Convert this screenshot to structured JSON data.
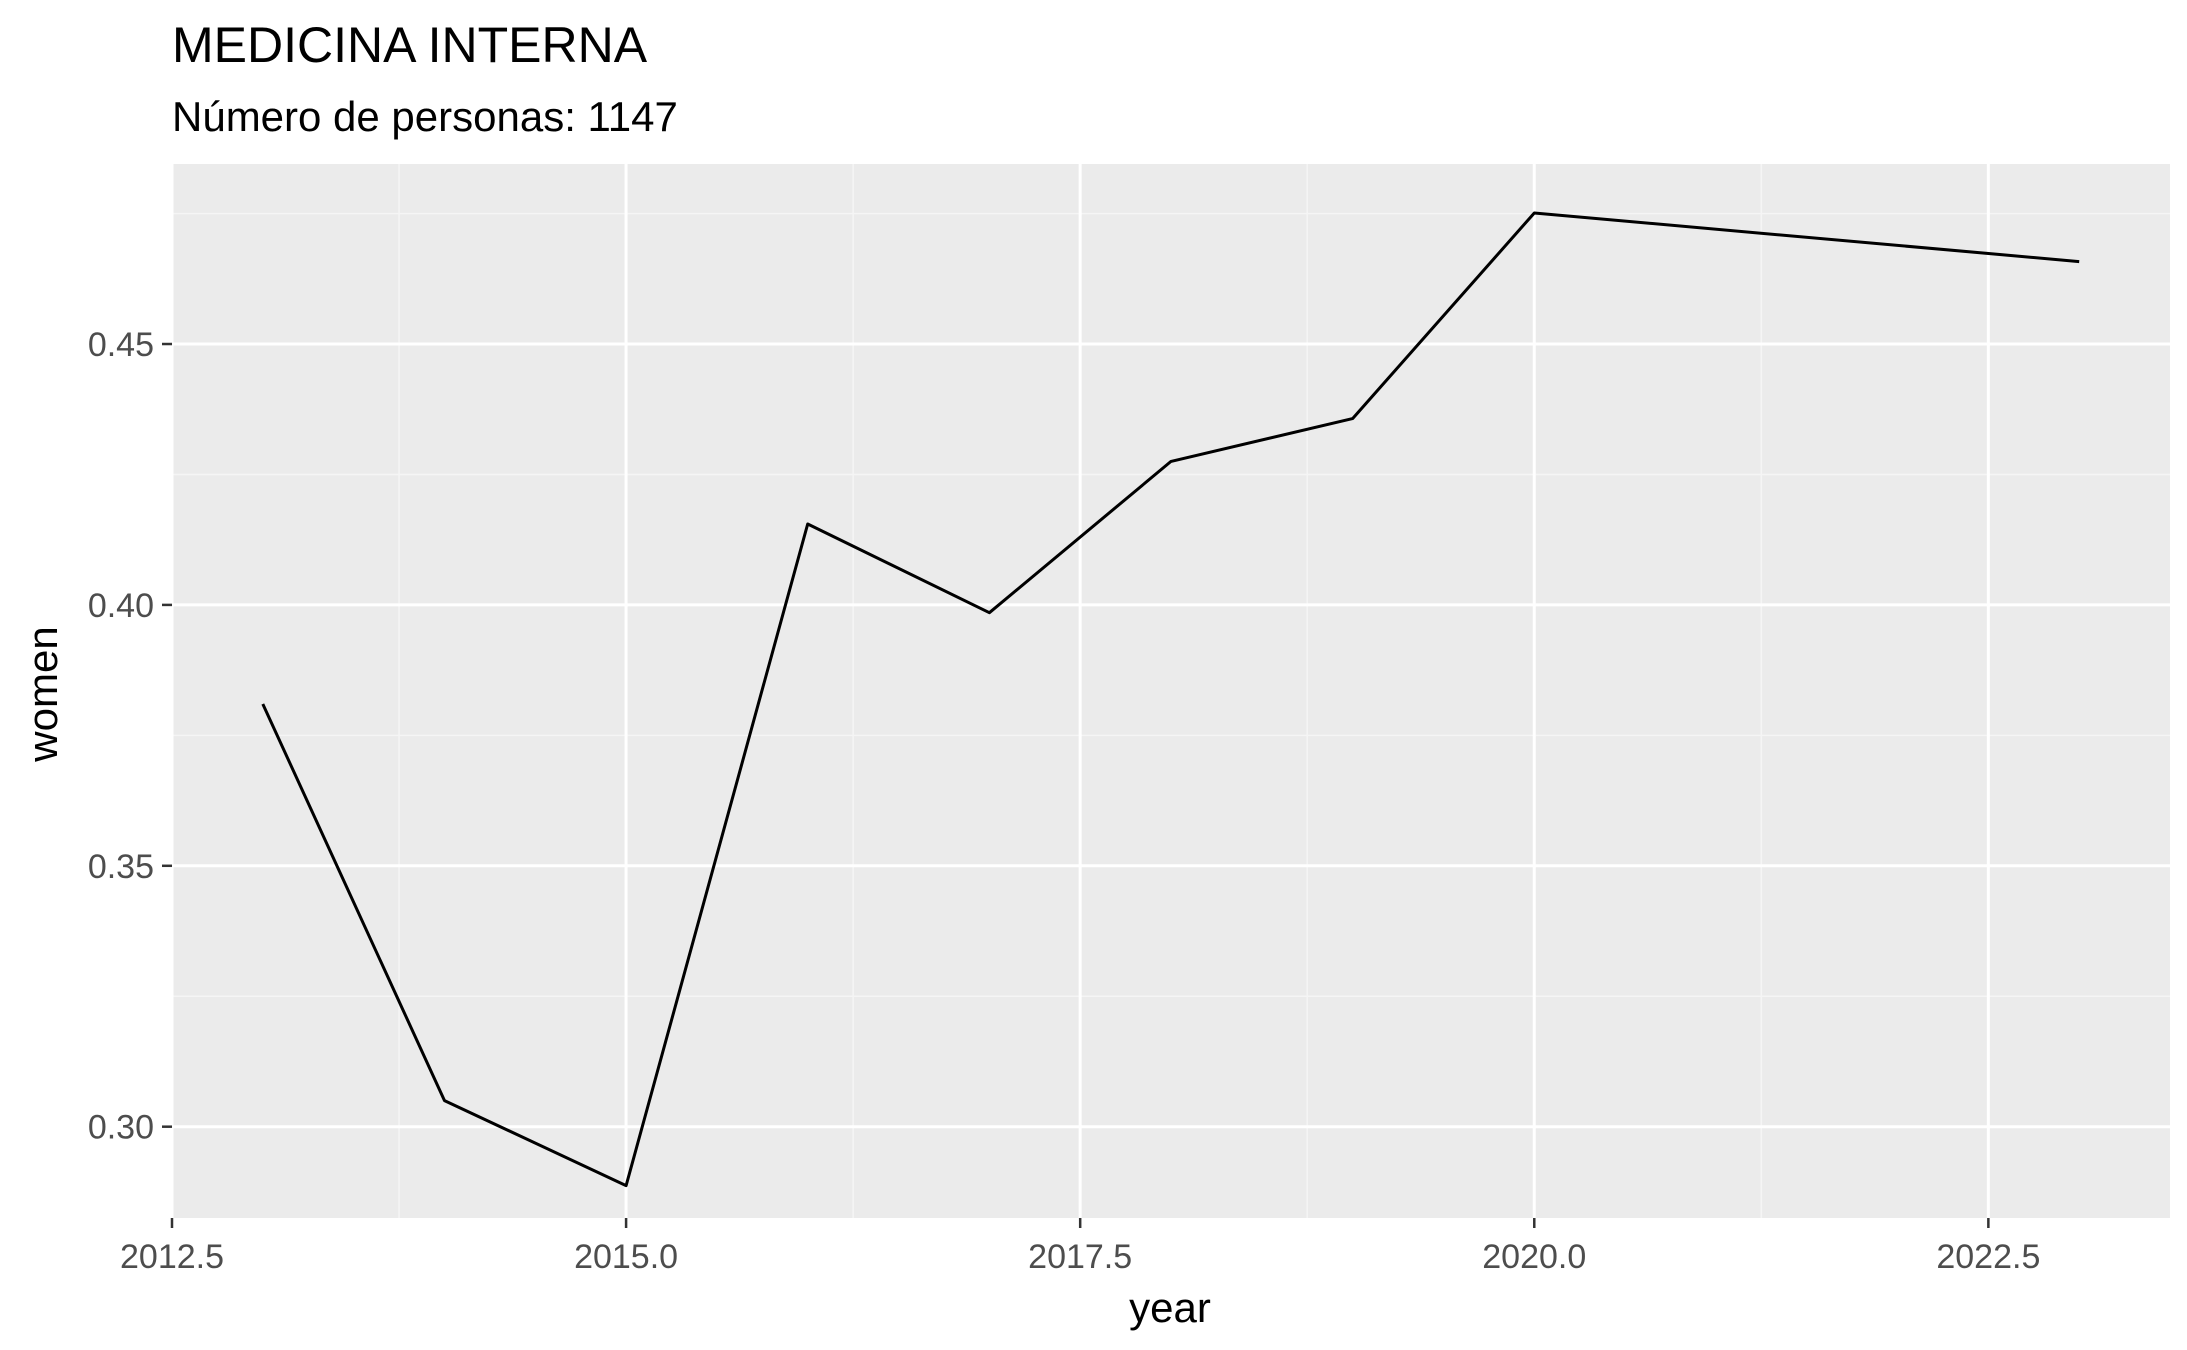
{
  "chart_data": {
    "type": "line",
    "title": "MEDICINA INTERNA",
    "subtitle": "Número de personas: 1147",
    "xlabel": "year",
    "ylabel": "women",
    "x": [
      2013,
      2014,
      2015,
      2016,
      2017,
      2018,
      2019,
      2020,
      2023
    ],
    "y": [
      0.381,
      0.305,
      0.2887,
      0.4155,
      0.3985,
      0.4275,
      0.4357,
      0.4751,
      0.4658
    ],
    "xlim": [
      2012.5,
      2023.5
    ],
    "ylim": [
      0.2825,
      0.4845
    ],
    "xticks": [
      2012.5,
      2015.0,
      2017.5,
      2020.0,
      2022.5
    ],
    "xtick_labels": [
      "2012.5",
      "2015.0",
      "2017.5",
      "2020.0",
      "2022.5"
    ],
    "yticks": [
      0.3,
      0.35,
      0.4,
      0.45
    ],
    "ytick_labels": [
      "0.30",
      "0.35",
      "0.40",
      "0.45"
    ],
    "grid": true,
    "colors": {
      "panel": "#ebebeb",
      "grid_major": "#ffffff",
      "grid_minor": "#f5f5f5",
      "line": "#000000",
      "tick": "#333333"
    }
  }
}
